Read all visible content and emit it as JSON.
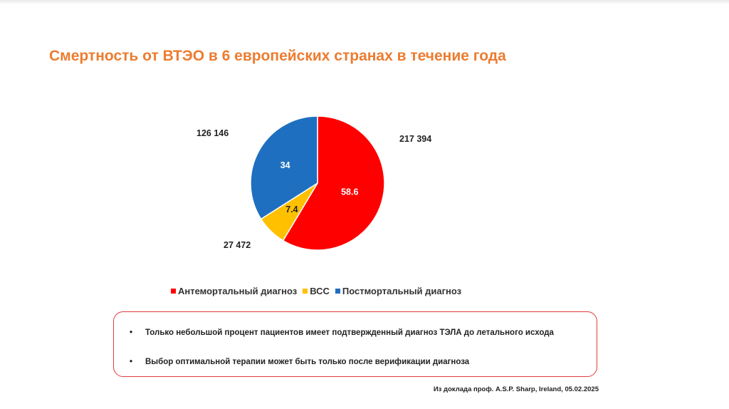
{
  "title": "Смертность от ВТЭО в 6 европейских странах в течение года",
  "chart_data": {
    "type": "pie",
    "title": "",
    "categories": [
      "Антемортальный диагноз",
      "ВСС",
      "Постмортальный диагноз"
    ],
    "values": [
      58.6,
      7.4,
      34
    ],
    "value_labels": [
      "58.6",
      "7.4",
      "34"
    ],
    "absolute_values": [
      "217 394",
      "27 472",
      "126 146"
    ],
    "colors": [
      "#ff0000",
      "#ffc000",
      "#1f6fc0"
    ],
    "legend_position": "bottom"
  },
  "legend": {
    "items": [
      {
        "label": "Антемортальный диагноз",
        "color": "#ff0000"
      },
      {
        "label": "ВСС",
        "color": "#ffc000"
      },
      {
        "label": "Постмортальный диагноз",
        "color": "#1f6fc0"
      }
    ]
  },
  "notes": {
    "bullet": "•",
    "items": [
      "Только небольшой процент пациентов имеет подтвержденный диагноз ТЭЛА до летального исхода",
      "Выбор оптимальной терапии может быть только после верификации диагноза"
    ]
  },
  "source": "Из доклада проф. A.S.P. Sharp, Ireland, 05.02.2025"
}
